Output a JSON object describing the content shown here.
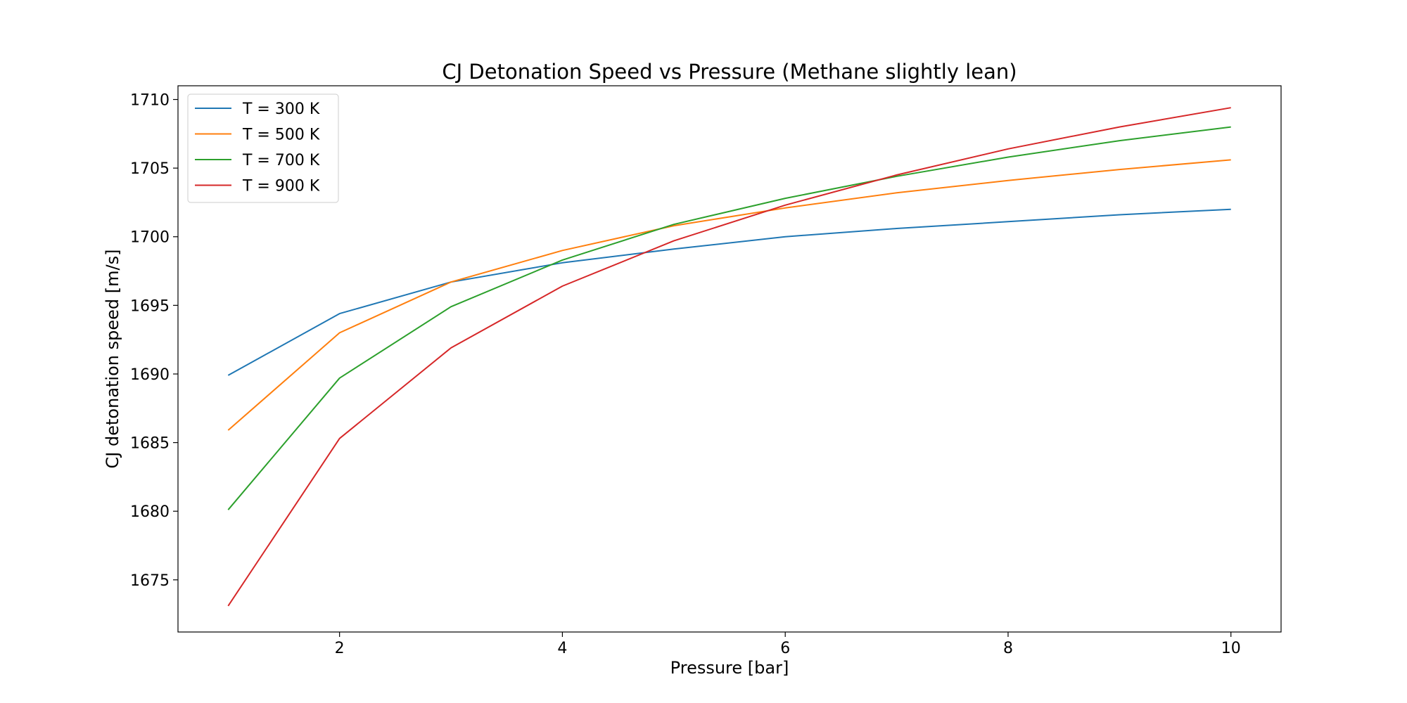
{
  "chart_data": {
    "type": "line",
    "title": "CJ Detonation Speed vs Pressure (Methane slightly lean)",
    "xlabel": "Pressure [bar]",
    "ylabel": "CJ detonation speed [m/s]",
    "xlim": [
      0.55,
      10.45
    ],
    "ylim": [
      1671.2,
      1711.0
    ],
    "xticks": [
      2,
      4,
      6,
      8,
      10
    ],
    "yticks": [
      1675,
      1680,
      1685,
      1690,
      1695,
      1700,
      1705,
      1710
    ],
    "grid": false,
    "legend_position": "top-left",
    "x": [
      1,
      2,
      3,
      4,
      5,
      6,
      7,
      8,
      9,
      10
    ],
    "series": [
      {
        "name": "T = 300 K",
        "color": "#1f77b4",
        "values": [
          1689.9,
          1694.4,
          1696.7,
          1698.1,
          1699.1,
          1700.0,
          1700.6,
          1701.1,
          1701.6,
          1702.0
        ]
      },
      {
        "name": "T = 500 K",
        "color": "#ff7f0e",
        "values": [
          1685.9,
          1693.0,
          1696.7,
          1699.0,
          1700.8,
          1702.1,
          1703.2,
          1704.1,
          1704.9,
          1705.6
        ]
      },
      {
        "name": "T = 700 K",
        "color": "#2ca02c",
        "values": [
          1680.1,
          1689.7,
          1694.9,
          1698.3,
          1700.9,
          1702.8,
          1704.4,
          1705.8,
          1707.0,
          1708.0
        ]
      },
      {
        "name": "T = 900 K",
        "color": "#d62728",
        "values": [
          1673.1,
          1685.3,
          1691.9,
          1696.4,
          1699.7,
          1702.3,
          1704.5,
          1706.4,
          1708.0,
          1709.4
        ]
      }
    ]
  }
}
